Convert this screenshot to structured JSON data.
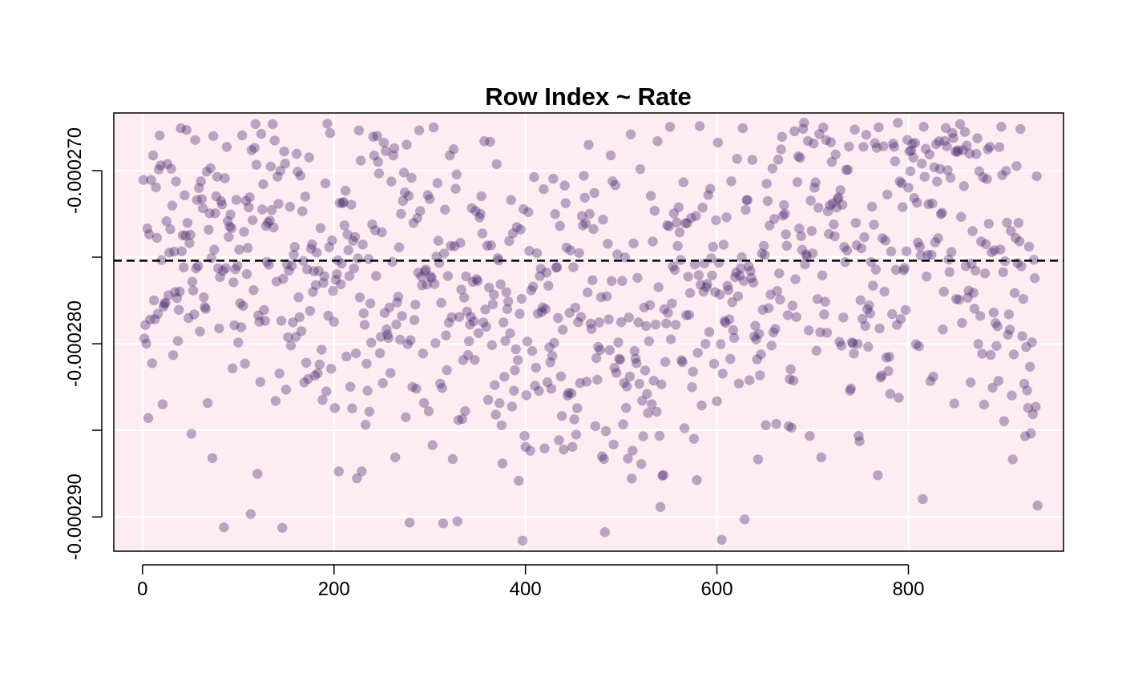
{
  "chart_data": {
    "type": "scatter",
    "title": "Row Index ~ Rate",
    "xlabel": "",
    "ylabel": "",
    "xlim": [
      -30,
      962
    ],
    "ylim": [
      -0.00029198,
      -0.00026667
    ],
    "x_ticks": [
      0,
      200,
      400,
      600,
      800
    ],
    "x_tick_labels": [
      "0",
      "200",
      "400",
      "600",
      "800"
    ],
    "y_ticks": [
      -0.00027,
      -0.000275,
      -0.00028,
      -0.000285,
      -0.00029
    ],
    "y_tick_labels": [
      "-0.000270",
      "",
      "-0.000280",
      "",
      "-0.000290"
    ],
    "grid": true,
    "reference_line": {
      "style": "dashed",
      "y": -0.0002752
    },
    "n_points": 935,
    "x_range": [
      1,
      935
    ],
    "y_data_range": [
      -0.0002916,
      -0.0002672
    ],
    "series": [
      {
        "color": "#3b1c66",
        "opacity": 0.35,
        "y_profile": {
          "x": [
            0,
            100,
            200,
            300,
            400,
            500,
            600,
            700,
            800,
            935
          ],
          "mean": [
            -0.000275,
            -0.0002745,
            -0.0002765,
            -0.0002758,
            -0.0002788,
            -0.000279,
            -0.0002772,
            -0.000275,
            -0.0002732,
            -0.0002778
          ],
          "spread": [
            4.8e-06,
            5e-06,
            5.2e-06,
            5.5e-06,
            5.3e-06,
            5.2e-06,
            5.5e-06,
            5.8e-06,
            6e-06,
            5.5e-06
          ]
        }
      }
    ],
    "background_color": "#fdecf2",
    "grid_color": "#ffffff"
  }
}
